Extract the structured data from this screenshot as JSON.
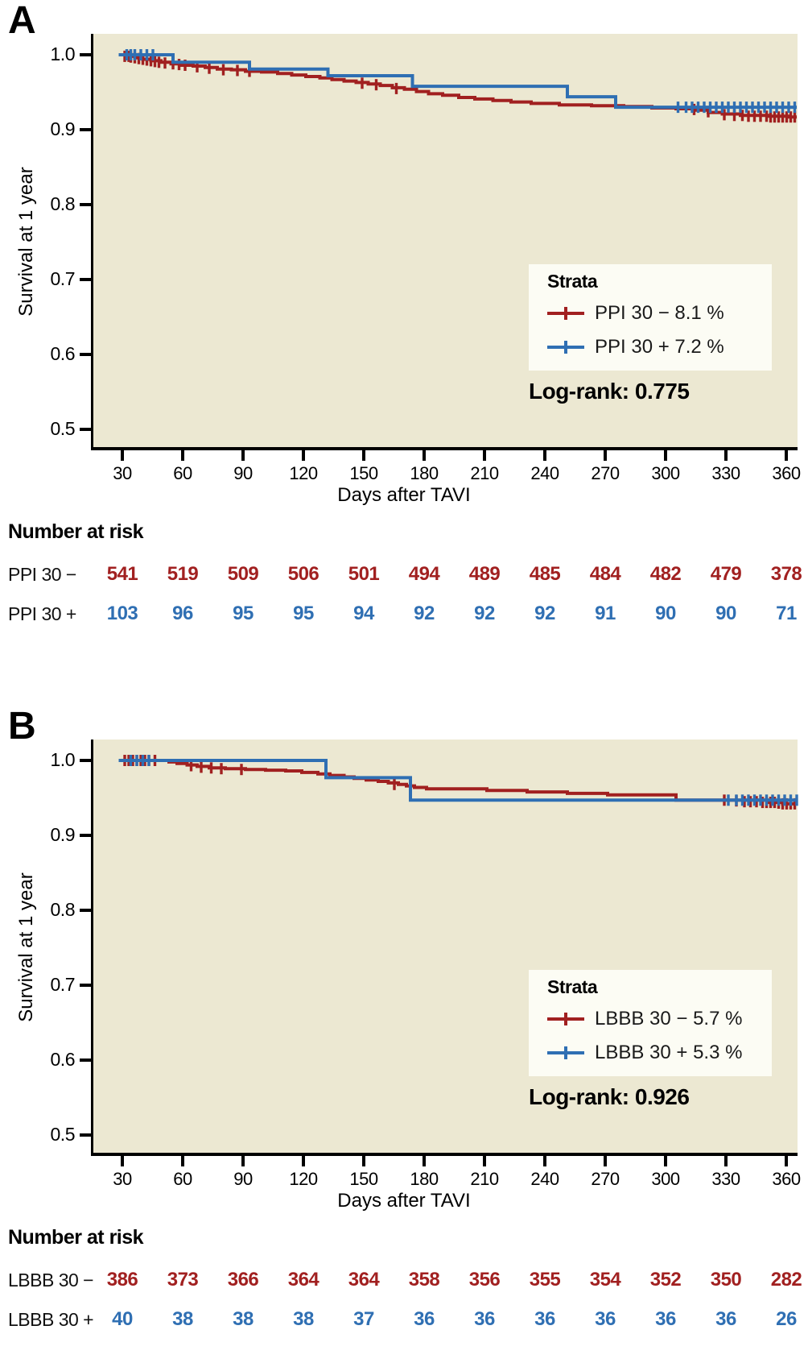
{
  "figure": {
    "description": "Two-panel Kaplan-Meier survival figure",
    "colors": {
      "strata_negative": "#A12020",
      "strata_positive": "#2F6FB3",
      "plot_background": "#ECE8D2",
      "legend_background": "#FCFCF4",
      "axis": "#000000"
    }
  },
  "chart_data": [
    {
      "type": "line",
      "subtype": "kaplan-meier-step",
      "panel_label": "A",
      "xlabel": "Days after TAVI",
      "ylabel": "Survival at 1 year",
      "x_ticks": [
        30,
        60,
        90,
        120,
        150,
        180,
        210,
        240,
        270,
        300,
        330,
        360
      ],
      "y_ticks": [
        "1.0",
        "0.9",
        "0.8",
        "0.7",
        "0.6",
        "0.5"
      ],
      "y_tick_values": [
        1.0,
        0.9,
        0.8,
        0.7,
        0.6,
        0.5
      ],
      "xlim": [
        14,
        368
      ],
      "ylim": [
        0.475,
        1.028
      ],
      "grid": false,
      "legend_title": "Strata",
      "legend_position": "right-center",
      "stat_label": "Log-rank: 0.775",
      "risk_table_title": "Number at risk",
      "x_end": 365,
      "series": [
        {
          "name": "PPI 30 − 8.1 %",
          "short_label": "PPI 30 −",
          "color": "#A12020",
          "steps": [
            [
              27,
              1.0
            ],
            [
              31,
              0.998
            ],
            [
              35,
              0.996
            ],
            [
              39,
              0.994
            ],
            [
              43,
              0.992
            ],
            [
              48,
              0.99
            ],
            [
              53,
              0.988
            ],
            [
              58,
              0.986
            ],
            [
              64,
              0.985
            ],
            [
              70,
              0.983
            ],
            [
              76,
              0.981
            ],
            [
              83,
              0.98
            ],
            [
              90,
              0.978
            ],
            [
              98,
              0.977
            ],
            [
              106,
              0.975
            ],
            [
              113,
              0.973
            ],
            [
              120,
              0.971
            ],
            [
              127,
              0.969
            ],
            [
              133,
              0.967
            ],
            [
              139,
              0.965
            ],
            [
              145,
              0.963
            ],
            [
              151,
              0.961
            ],
            [
              157,
              0.959
            ],
            [
              163,
              0.956
            ],
            [
              169,
              0.954
            ],
            [
              175,
              0.951
            ],
            [
              181,
              0.948
            ],
            [
              188,
              0.946
            ],
            [
              196,
              0.943
            ],
            [
              204,
              0.941
            ],
            [
              213,
              0.939
            ],
            [
              222,
              0.937
            ],
            [
              232,
              0.935
            ],
            [
              246,
              0.933
            ],
            [
              262,
              0.932
            ],
            [
              278,
              0.931
            ],
            [
              292,
              0.929
            ],
            [
              304,
              0.928
            ],
            [
              314,
              0.926
            ],
            [
              320,
              0.923
            ],
            [
              327,
              0.921
            ],
            [
              336,
              0.919
            ],
            [
              350,
              0.918
            ],
            [
              360,
              0.917
            ]
          ],
          "censors": [
            [
              30,
              0.998
            ],
            [
              32,
              0.998
            ],
            [
              33,
              0.997
            ],
            [
              35,
              0.996
            ],
            [
              37,
              0.995
            ],
            [
              39,
              0.994
            ],
            [
              41,
              0.993
            ],
            [
              43,
              0.992
            ],
            [
              45,
              0.991
            ],
            [
              47,
              0.99
            ],
            [
              50,
              0.989
            ],
            [
              54,
              0.988
            ],
            [
              57,
              0.987
            ],
            [
              60,
              0.986
            ],
            [
              66,
              0.984
            ],
            [
              72,
              0.982
            ],
            [
              79,
              0.98
            ],
            [
              86,
              0.979
            ],
            [
              92,
              0.978
            ],
            [
              148,
              0.962
            ],
            [
              155,
              0.96
            ],
            [
              165,
              0.955
            ],
            [
              313,
              0.927
            ],
            [
              320,
              0.924
            ],
            [
              328,
              0.92
            ],
            [
              333,
              0.919
            ],
            [
              337,
              0.919
            ],
            [
              340,
              0.918
            ],
            [
              343,
              0.918
            ],
            [
              346,
              0.918
            ],
            [
              349,
              0.918
            ],
            [
              351,
              0.917
            ],
            [
              353,
              0.917
            ],
            [
              355,
              0.917
            ],
            [
              357,
              0.917
            ],
            [
              359,
              0.917
            ],
            [
              361,
              0.917
            ],
            [
              363,
              0.917
            ]
          ],
          "number_at_risk": [
            541,
            519,
            509,
            506,
            501,
            494,
            489,
            485,
            484,
            482,
            479,
            378
          ]
        },
        {
          "name": "PPI 30 + 7.2 %",
          "short_label": "PPI 30 +",
          "color": "#2F6FB3",
          "steps": [
            [
              27,
              1.0
            ],
            [
              54,
              0.99
            ],
            [
              92,
              0.981
            ],
            [
              131,
              0.972
            ],
            [
              173,
              0.958
            ],
            [
              250,
              0.944
            ],
            [
              274,
              0.93
            ]
          ],
          "censors": [
            [
              31,
              1.0
            ],
            [
              33,
              1.0
            ],
            [
              35,
              1.0
            ],
            [
              38,
              1.0
            ],
            [
              41,
              1.0
            ],
            [
              44,
              1.0
            ],
            [
              305,
              0.93
            ],
            [
              309,
              0.93
            ],
            [
              312,
              0.93
            ],
            [
              315,
              0.93
            ],
            [
              318,
              0.93
            ],
            [
              321,
              0.93
            ],
            [
              324,
              0.93
            ],
            [
              327,
              0.93
            ],
            [
              330,
              0.93
            ],
            [
              333,
              0.93
            ],
            [
              336,
              0.93
            ],
            [
              339,
              0.93
            ],
            [
              342,
              0.93
            ],
            [
              345,
              0.93
            ],
            [
              348,
              0.93
            ],
            [
              351,
              0.93
            ],
            [
              354,
              0.93
            ],
            [
              357,
              0.93
            ],
            [
              360,
              0.93
            ],
            [
              363,
              0.93
            ]
          ],
          "number_at_risk": [
            103,
            96,
            95,
            95,
            94,
            92,
            92,
            92,
            91,
            90,
            90,
            71
          ]
        }
      ]
    },
    {
      "type": "line",
      "subtype": "kaplan-meier-step",
      "panel_label": "B",
      "xlabel": "Days after TAVI",
      "ylabel": "Survival at 1 year",
      "x_ticks": [
        30,
        60,
        90,
        120,
        150,
        180,
        210,
        240,
        270,
        300,
        330,
        360
      ],
      "y_ticks": [
        "1.0",
        "0.9",
        "0.8",
        "0.7",
        "0.6",
        "0.5"
      ],
      "y_tick_values": [
        1.0,
        0.9,
        0.8,
        0.7,
        0.6,
        0.5
      ],
      "xlim": [
        14,
        368
      ],
      "ylim": [
        0.475,
        1.028
      ],
      "grid": false,
      "legend_title": "Strata",
      "legend_position": "right-center",
      "stat_label": "Log-rank: 0.926",
      "risk_table_title": "Number at risk",
      "x_end": 365,
      "series": [
        {
          "name": "LBBB 30 − 5.7 %",
          "short_label": "LBBB 30 −",
          "color": "#A12020",
          "steps": [
            [
              27,
              1.0
            ],
            [
              52,
              0.998
            ],
            [
              56,
              0.996
            ],
            [
              61,
              0.994
            ],
            [
              66,
              0.992
            ],
            [
              72,
              0.99
            ],
            [
              80,
              0.989
            ],
            [
              90,
              0.988
            ],
            [
              100,
              0.987
            ],
            [
              110,
              0.986
            ],
            [
              118,
              0.984
            ],
            [
              126,
              0.982
            ],
            [
              132,
              0.98
            ],
            [
              139,
              0.978
            ],
            [
              144,
              0.976
            ],
            [
              150,
              0.974
            ],
            [
              156,
              0.972
            ],
            [
              161,
              0.97
            ],
            [
              166,
              0.968
            ],
            [
              170,
              0.966
            ],
            [
              174,
              0.964
            ],
            [
              180,
              0.962
            ],
            [
              210,
              0.96
            ],
            [
              230,
              0.958
            ],
            [
              250,
              0.956
            ],
            [
              270,
              0.954
            ],
            [
              304,
              0.947
            ],
            [
              350,
              0.944
            ],
            [
              357,
              0.942
            ]
          ],
          "censors": [
            [
              30,
              1.0
            ],
            [
              32,
              1.0
            ],
            [
              34,
              1.0
            ],
            [
              36,
              1.0
            ],
            [
              38,
              1.0
            ],
            [
              40,
              1.0
            ],
            [
              42,
              1.0
            ],
            [
              45,
              1.0
            ],
            [
              63,
              0.993
            ],
            [
              68,
              0.991
            ],
            [
              73,
              0.99
            ],
            [
              78,
              0.989
            ],
            [
              88,
              0.988
            ],
            [
              164,
              0.968
            ],
            [
              328,
              0.947
            ],
            [
              334,
              0.946
            ],
            [
              338,
              0.945
            ],
            [
              341,
              0.945
            ],
            [
              344,
              0.945
            ],
            [
              347,
              0.944
            ],
            [
              349,
              0.944
            ],
            [
              351,
              0.944
            ],
            [
              353,
              0.944
            ],
            [
              355,
              0.943
            ],
            [
              357,
              0.942
            ],
            [
              359,
              0.942
            ],
            [
              361,
              0.942
            ],
            [
              363,
              0.942
            ]
          ],
          "number_at_risk": [
            386,
            373,
            366,
            364,
            364,
            358,
            356,
            355,
            354,
            352,
            350,
            282
          ]
        },
        {
          "name": "LBBB 30 + 5.3 %",
          "short_label": "LBBB 30 +",
          "color": "#2F6FB3",
          "steps": [
            [
              27,
              1.0
            ],
            [
              130,
              0.977
            ],
            [
              172,
              0.947
            ]
          ],
          "censors": [
            [
              33,
              1.0
            ],
            [
              36,
              1.0
            ],
            [
              39,
              1.0
            ],
            [
              42,
              1.0
            ],
            [
              330,
              0.947
            ],
            [
              334,
              0.947
            ],
            [
              337,
              0.947
            ],
            [
              340,
              0.947
            ],
            [
              343,
              0.947
            ],
            [
              346,
              0.947
            ],
            [
              349,
              0.947
            ],
            [
              352,
              0.947
            ],
            [
              355,
              0.947
            ],
            [
              358,
              0.947
            ],
            [
              361,
              0.947
            ],
            [
              364,
              0.947
            ]
          ],
          "number_at_risk": [
            40,
            38,
            38,
            38,
            37,
            36,
            36,
            36,
            36,
            36,
            36,
            26
          ]
        }
      ]
    }
  ]
}
